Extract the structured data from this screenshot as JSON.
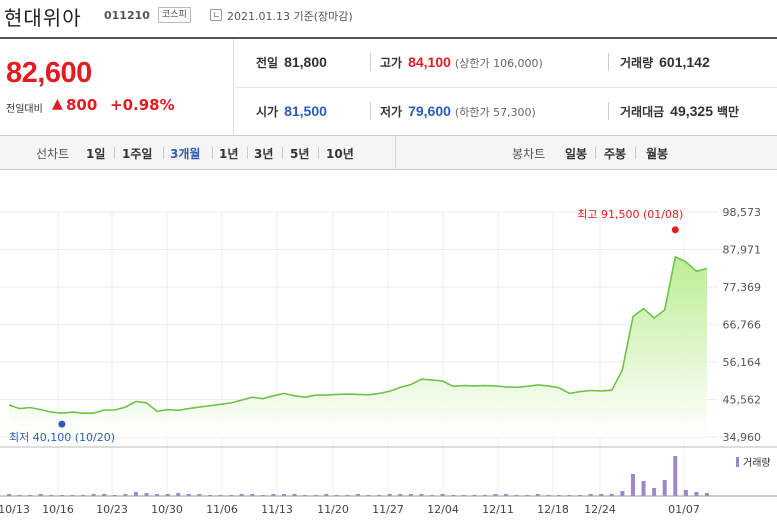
{
  "header": {
    "stock_name": "현대위아",
    "stock_code": "011210",
    "market": "코스피",
    "date_text": "2021.01.13 기준(장마감)"
  },
  "price": {
    "current": "82,600",
    "change_label": "전일대비",
    "change_arrow": "▲",
    "change": "800",
    "change_pct": "+0.98%"
  },
  "stats": {
    "prev_close_label": "전일",
    "prev_close": "81,800",
    "high_label": "고가",
    "high": "84,100",
    "upper_limit": "(상한가 106,000)",
    "volume_label": "거래량",
    "volume": "601,142",
    "open_label": "시가",
    "open": "81,500",
    "low_label": "저가",
    "low": "79,600",
    "lower_limit": "(하한가 57,300)",
    "trade_value_label": "거래대금",
    "trade_value": "49,325",
    "trade_value_unit": "백만"
  },
  "tabs": {
    "line_label": "선차트",
    "line_tabs": [
      "1일",
      "1주일",
      "3개월",
      "1년",
      "3년",
      "5년",
      "10년"
    ],
    "active": "3개월",
    "candle_label": "봉차트",
    "candle_tabs": [
      "일봉",
      "주봉",
      "월봉"
    ]
  },
  "colors": {
    "up": "#e31b23",
    "down": "#2c5cb8",
    "line": "#70c24a",
    "volume": "#9d86c9"
  },
  "chart_data": {
    "type": "area",
    "y_ticks": [
      "98,573",
      "87,971",
      "77,369",
      "66,766",
      "56,164",
      "45,562",
      "34,960"
    ],
    "y_range": [
      34960,
      98573
    ],
    "x_ticks": [
      "10/13",
      "10/16",
      "10/23",
      "10/30",
      "11/06",
      "11/13",
      "11/20",
      "11/27",
      "12/04",
      "12/11",
      "12/18",
      "12/24",
      "01/07"
    ],
    "max_label": "최고 91,500 (01/08)",
    "min_label": "최저 40,100 (10/20)",
    "volume_legend": "거래량",
    "series": [
      {
        "values": [
          44000,
          43000,
          43300,
          42700,
          42000,
          41700,
          42000,
          41700,
          41700,
          42600,
          42600,
          43400,
          45000,
          44600,
          42200,
          42700,
          42500,
          43000,
          43400,
          43800,
          44200,
          44600,
          45400,
          46200,
          45800,
          46600,
          47300,
          46600,
          46200,
          46800,
          46800,
          47000,
          47100,
          47000,
          46900,
          47300,
          47900,
          49000,
          49800,
          51300,
          51100,
          50800,
          49300,
          49500,
          49400,
          49500,
          49400,
          49100,
          49000,
          49300,
          49700,
          49400,
          48900,
          47300,
          47800,
          48100,
          48000,
          48200,
          54000,
          69000,
          71300,
          68600,
          70900,
          85900,
          84500,
          81800,
          82600
        ]
      }
    ],
    "volume": [
      2,
      1,
      1,
      2,
      1,
      1,
      1,
      1,
      2,
      2,
      1,
      2,
      4,
      3,
      2,
      2,
      3,
      2,
      2,
      1,
      1,
      1,
      2,
      2,
      1,
      2,
      2,
      2,
      1,
      1,
      2,
      1,
      1,
      2,
      1,
      1,
      2,
      2,
      2,
      2,
      1,
      2,
      1,
      1,
      1,
      1,
      2,
      2,
      1,
      1,
      2,
      1,
      1,
      1,
      1,
      2,
      2,
      2,
      5,
      22,
      15,
      8,
      16,
      40,
      6,
      4,
      3
    ]
  }
}
